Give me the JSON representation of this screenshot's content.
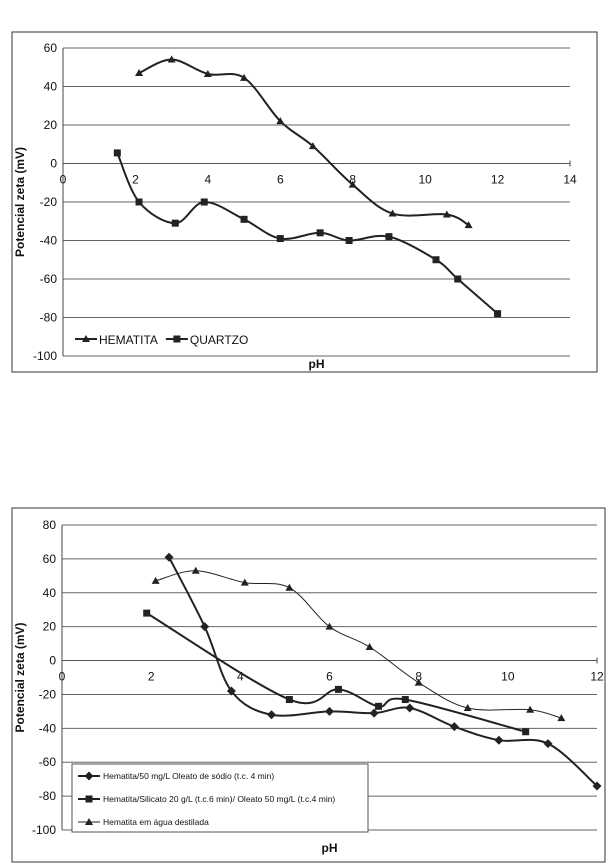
{
  "chart_data": [
    {
      "type": "line",
      "title": "",
      "xlabel": "pH",
      "ylabel": "Potencial zeta (mV)",
      "xlim": [
        0,
        14
      ],
      "ylim": [
        -100,
        60
      ],
      "xticks": [
        0,
        2,
        4,
        6,
        8,
        10,
        12,
        14
      ],
      "yticks": [
        60,
        40,
        20,
        0,
        -20,
        -40,
        -60,
        -80,
        -100
      ],
      "grid": "horizontal",
      "legend": "bottom-left",
      "series": [
        {
          "name": "HEMATITA",
          "marker": "triangle",
          "weight": "bold",
          "points": [
            [
              2.1,
              47
            ],
            [
              3,
              54
            ],
            [
              4,
              46.5
            ],
            [
              5,
              44.5
            ],
            [
              6,
              22
            ],
            [
              6.9,
              9
            ],
            [
              8,
              -11
            ],
            [
              9.1,
              -26
            ],
            [
              10.6,
              -26.5
            ],
            [
              11.2,
              -32
            ]
          ]
        },
        {
          "name": "QUARTZO",
          "marker": "square",
          "weight": "bold",
          "points": [
            [
              1.5,
              5.5
            ],
            [
              2.1,
              -20
            ],
            [
              3.1,
              -31
            ],
            [
              3.9,
              -20
            ],
            [
              5,
              -29
            ],
            [
              6,
              -39
            ],
            [
              7.1,
              -36
            ],
            [
              7.9,
              -40
            ],
            [
              9,
              -38
            ],
            [
              10.3,
              -50
            ],
            [
              10.9,
              -60
            ],
            [
              12,
              -78
            ]
          ]
        }
      ]
    },
    {
      "type": "line",
      "title": "",
      "xlabel": "pH",
      "ylabel": "Potencial zeta (mV)",
      "xlim": [
        0,
        12
      ],
      "ylim": [
        -100,
        80
      ],
      "xticks": [
        0,
        2,
        4,
        6,
        8,
        10,
        12
      ],
      "yticks": [
        80,
        60,
        40,
        20,
        0,
        -20,
        -40,
        -60,
        -80,
        -100
      ],
      "grid": "horizontal",
      "legend": "bottom-left",
      "series": [
        {
          "name": "Hematita/50 mg/L Oleato de sódio (t.c. 4 min)",
          "marker": "diamond",
          "weight": "bold",
          "points": [
            [
              2.4,
              61
            ],
            [
              3.2,
              20
            ],
            [
              3.8,
              -18
            ],
            [
              4.7,
              -32
            ],
            [
              6,
              -30
            ],
            [
              7,
              -31
            ],
            [
              7.8,
              -28
            ],
            [
              8.8,
              -39
            ],
            [
              9.8,
              -47
            ],
            [
              10.9,
              -49
            ],
            [
              12,
              -74
            ]
          ]
        },
        {
          "name": "Hematita/Silicato 20 g/L (t.c.6 min)/ Oleato 50 mg/L (t.c.4 min)",
          "marker": "square",
          "weight": "bold",
          "points": [
            [
              1.9,
              28
            ],
            [
              5.1,
              -23
            ],
            [
              6.2,
              -17
            ],
            [
              7.1,
              -27
            ],
            [
              7.7,
              -23
            ],
            [
              10.4,
              -42
            ]
          ]
        },
        {
          "name": "Hematita em água destilada",
          "marker": "triangle",
          "weight": "thin",
          "points": [
            [
              2.1,
              47
            ],
            [
              3,
              53
            ],
            [
              4.1,
              46
            ],
            [
              5.1,
              43
            ],
            [
              6,
              20
            ],
            [
              6.9,
              8
            ],
            [
              8,
              -13
            ],
            [
              9.1,
              -28
            ],
            [
              10.5,
              -29
            ],
            [
              11.2,
              -34
            ]
          ]
        }
      ]
    }
  ]
}
